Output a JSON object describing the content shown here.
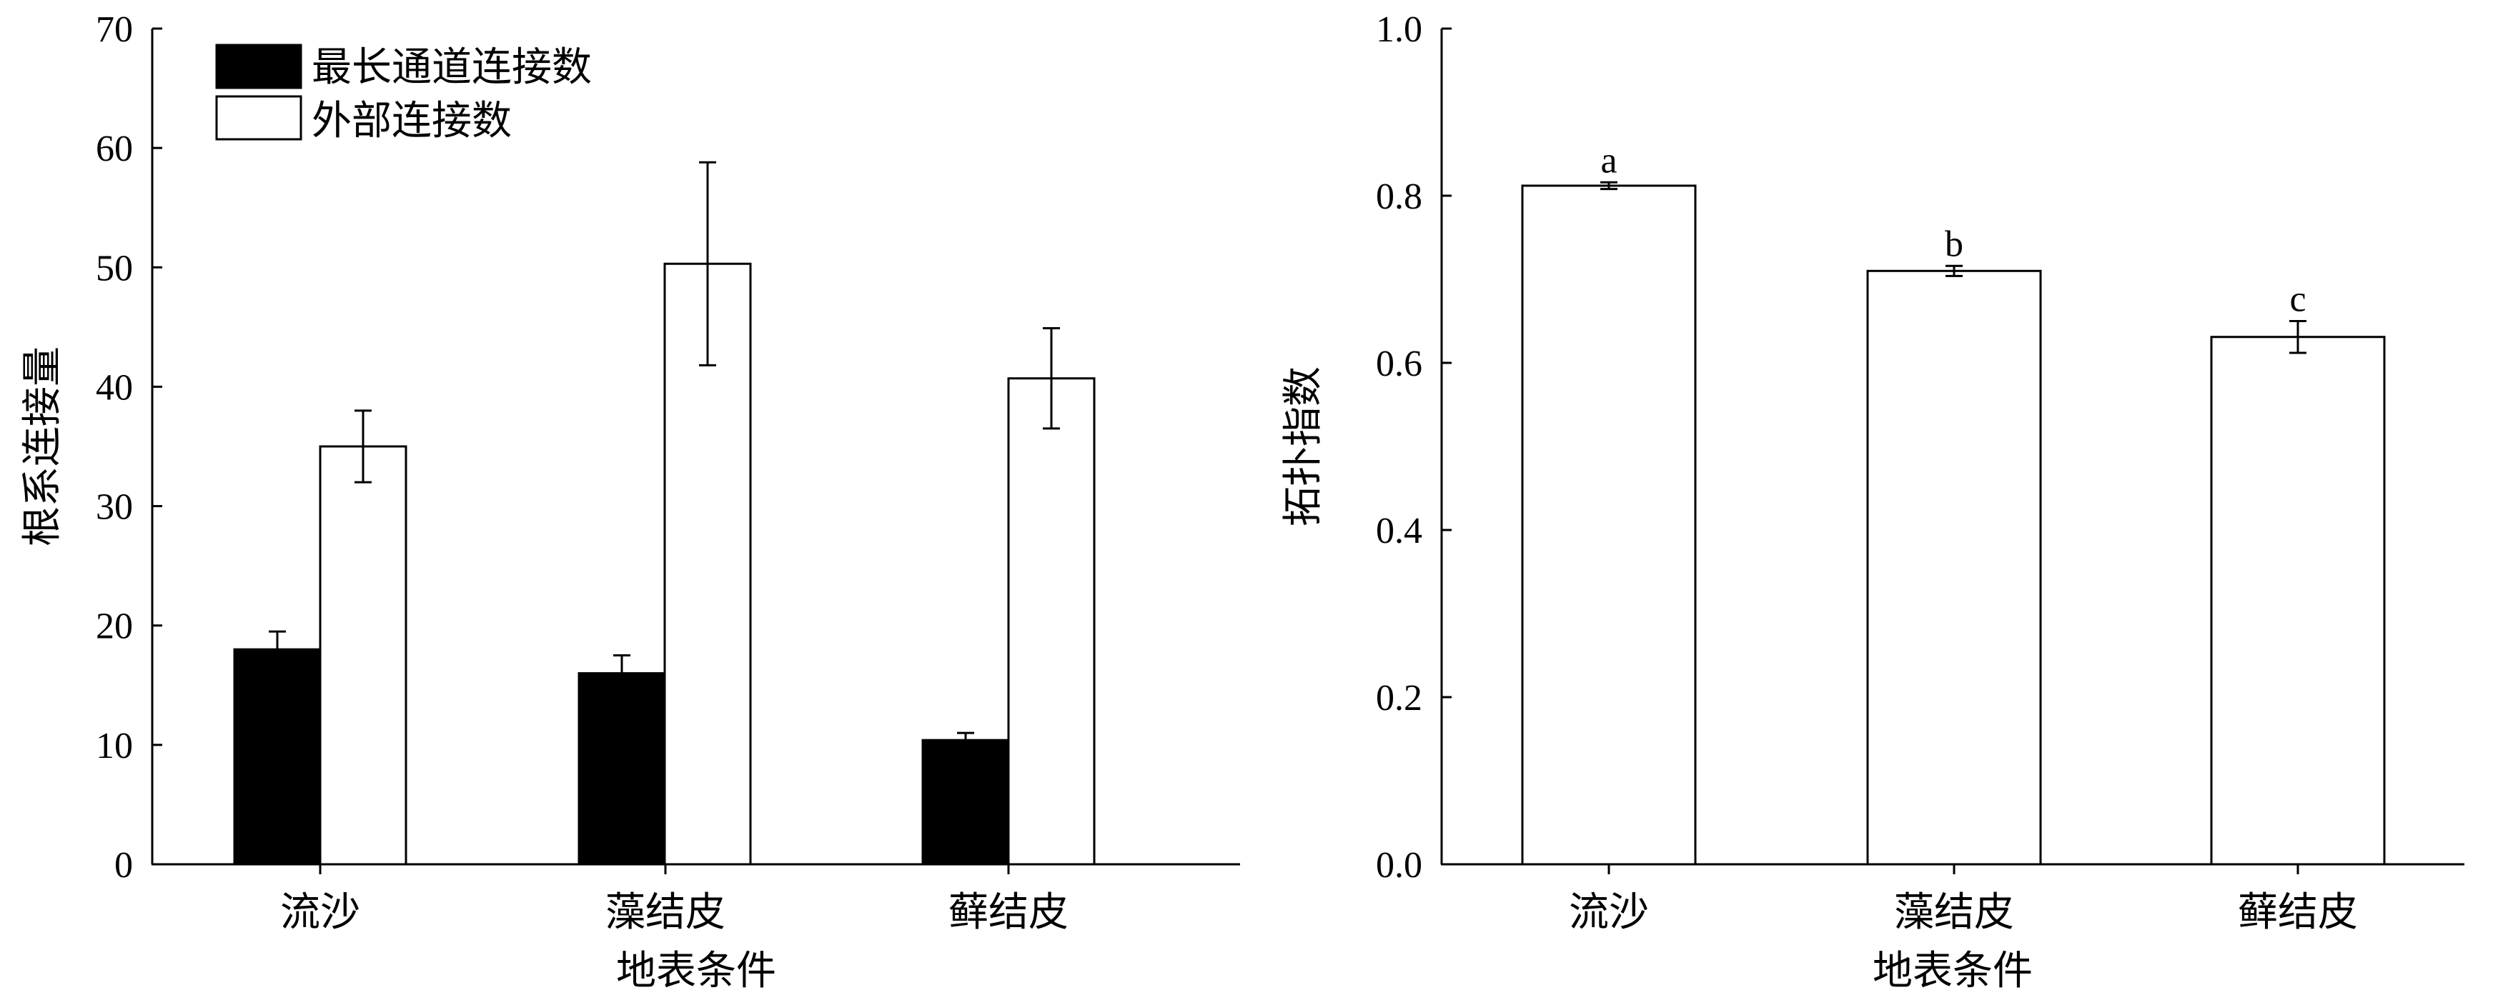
{
  "chart_data": [
    {
      "type": "bar",
      "categories": [
        "流沙",
        "藻结皮",
        "藓结皮"
      ],
      "xlabel": "地表条件",
      "ylabel": "根系连接量",
      "ylim": [
        0,
        70
      ],
      "yticks": [
        0,
        10,
        20,
        30,
        40,
        50,
        60,
        70
      ],
      "legend_position": "top-left",
      "series": [
        {
          "name": "最长通道连接数",
          "color": "#000000",
          "values": [
            18,
            16,
            10.4
          ],
          "errors": [
            1.5,
            1.5,
            0.6
          ]
        },
        {
          "name": "外部连接数",
          "color": "#ffffff",
          "values": [
            35,
            50.3,
            40.7
          ],
          "errors": [
            3,
            8.5,
            4.2
          ]
        }
      ]
    },
    {
      "type": "bar",
      "categories": [
        "流沙",
        "藻结皮",
        "藓结皮"
      ],
      "xlabel": "地表条件",
      "ylabel": "拓扑指数",
      "ylim": [
        0,
        1.0
      ],
      "yticks": [
        "0.0",
        "0.2",
        "0.4",
        "0.6",
        "0.8",
        "1.0"
      ],
      "series": [
        {
          "color": "#ffffff",
          "values": [
            0.812,
            0.71,
            0.631
          ],
          "errors": [
            0.004,
            0.006,
            0.019
          ],
          "labels": [
            "a",
            "b",
            "c"
          ]
        }
      ]
    }
  ]
}
